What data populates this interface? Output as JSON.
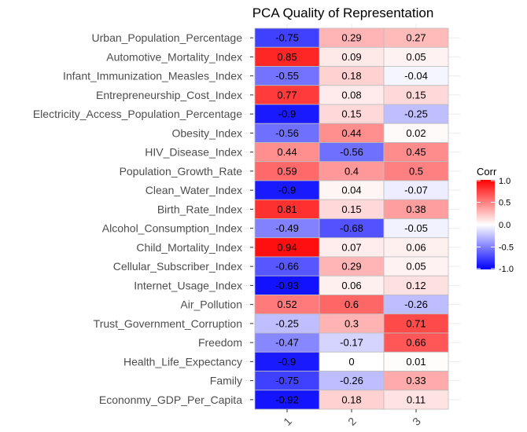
{
  "chart_data": {
    "type": "heatmap",
    "title": "PCA Quality of Representation",
    "rows": [
      "Urban_Population_Percentage",
      "Automotive_Mortality_Index",
      "Infant_Immunization_Measles_Index",
      "Entrepreneurship_Cost_Index",
      "Electricity_Access_Population_Percentage",
      "Obesity_Index",
      "HIV_Disease_Index",
      "Population_Growth_Rate",
      "Clean_Water_Index",
      "Birth_Rate_Index",
      "Alcohol_Consumption_Index",
      "Child_Mortality_Index",
      "Cellular_Subscriber_Index",
      "Internet_Usage_Index",
      "Air_Pollution",
      "Trust_Government_Corruption",
      "Freedom",
      "Health_Life_Expectancy",
      "Family",
      "Econonmy_GDP_Per_Capita"
    ],
    "columns": [
      "1",
      "2",
      "3"
    ],
    "values": [
      [
        -0.75,
        0.29,
        0.27
      ],
      [
        0.85,
        0.09,
        0.05
      ],
      [
        -0.55,
        0.18,
        -0.04
      ],
      [
        0.77,
        0.08,
        0.15
      ],
      [
        -0.9,
        0.15,
        -0.25
      ],
      [
        -0.56,
        0.44,
        0.02
      ],
      [
        0.44,
        -0.56,
        0.45
      ],
      [
        0.59,
        0.4,
        0.5
      ],
      [
        -0.9,
        0.04,
        -0.07
      ],
      [
        0.81,
        0.15,
        0.38
      ],
      [
        -0.49,
        -0.68,
        -0.05
      ],
      [
        0.94,
        0.07,
        0.06
      ],
      [
        -0.66,
        0.29,
        0.05
      ],
      [
        -0.93,
        0.06,
        0.12
      ],
      [
        0.52,
        0.6,
        -0.26
      ],
      [
        -0.25,
        0.3,
        0.71
      ],
      [
        -0.47,
        -0.17,
        0.66
      ],
      [
        -0.9,
        0,
        0.01
      ],
      [
        -0.75,
        -0.26,
        0.33
      ],
      [
        -0.92,
        0.18,
        0.11
      ]
    ],
    "legend": {
      "title": "Corr",
      "ticks": [
        1.0,
        0.5,
        0.0,
        -0.5,
        -1.0
      ],
      "tick_labels": [
        "1.0",
        "0.5",
        "0.0",
        "-0.5",
        "-1.0"
      ],
      "range": [
        -1,
        1
      ],
      "position": "right"
    },
    "colors": {
      "low": "#0000ff",
      "mid": "#ffffff",
      "high": "#ff0000",
      "grid": "#ebebeb",
      "cell_border": "#bdbdbd"
    }
  }
}
